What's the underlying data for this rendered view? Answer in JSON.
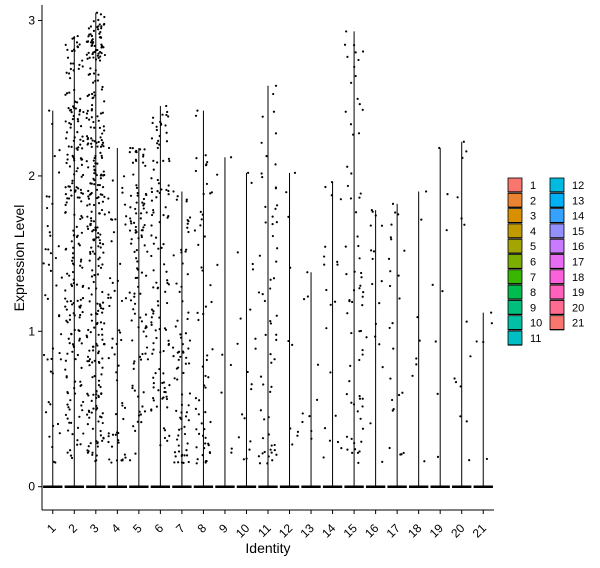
{
  "chart_data": {
    "type": "violin",
    "title": "",
    "xlabel": "Identity",
    "ylabel": "Expression Level",
    "ylim": [
      -0.15,
      3.1
    ],
    "yticks": [
      0,
      1,
      2,
      3
    ],
    "categories": [
      "1",
      "2",
      "3",
      "4",
      "5",
      "6",
      "7",
      "8",
      "9",
      "10",
      "11",
      "12",
      "13",
      "14",
      "15",
      "16",
      "17",
      "18",
      "19",
      "20",
      "21"
    ],
    "max_values": [
      2.42,
      2.9,
      3.05,
      2.18,
      2.18,
      2.45,
      1.9,
      2.42,
      2.12,
      2.02,
      2.58,
      2.02,
      1.38,
      1.96,
      2.93,
      1.78,
      1.82,
      1.9,
      2.18,
      2.22,
      1.12
    ],
    "point_density": [
      45,
      220,
      320,
      60,
      110,
      120,
      80,
      60,
      8,
      20,
      60,
      10,
      10,
      20,
      70,
      18,
      25,
      8,
      8,
      14,
      5
    ],
    "colors": [
      "#F8766D",
      "#EA8331",
      "#D89000",
      "#C09B00",
      "#A3A500",
      "#7CAE00",
      "#39B600",
      "#00BB4E",
      "#00BF7D",
      "#00C1A3",
      "#00BFC4",
      "#00BAE0",
      "#00B0F6",
      "#35A2FF",
      "#9590FF",
      "#C77CFF",
      "#E76BF3",
      "#FA62DB",
      "#FF62BC",
      "#FF6C91",
      "#F8766D"
    ],
    "legend": {
      "position": "right",
      "columns": [
        [
          "1",
          "2",
          "3",
          "4",
          "5",
          "6",
          "7",
          "8",
          "9",
          "10",
          "11"
        ],
        [
          "12",
          "13",
          "14",
          "15",
          "16",
          "17",
          "18",
          "19",
          "20",
          "21"
        ]
      ]
    },
    "grid": false
  }
}
